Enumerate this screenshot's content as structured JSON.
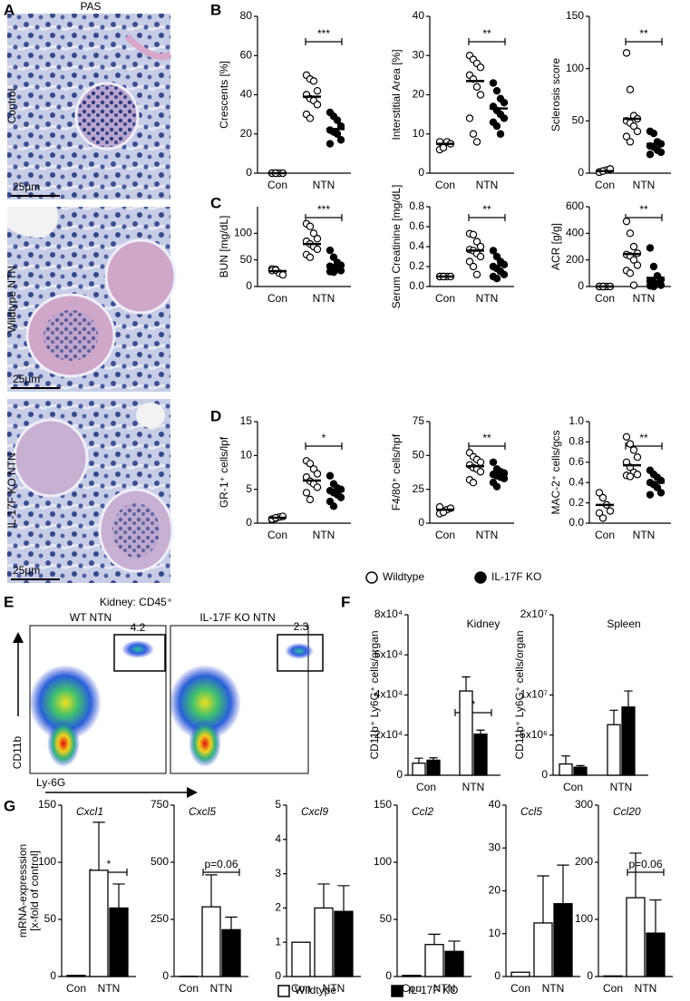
{
  "panel_labels": [
    "A",
    "B",
    "C",
    "D",
    "E",
    "F",
    "G"
  ],
  "panel_a": {
    "stain": "PAS",
    "rows": [
      {
        "label": "Control",
        "scale_bar": "25µm"
      },
      {
        "label": "Wildtype NTN",
        "scale_bar": "25µm"
      },
      {
        "label": "IL-17F KO NTN",
        "scale_bar": "25µm"
      }
    ]
  },
  "panel_e": {
    "title": "Kidney: CD45⁺",
    "x_axis": "Ly-6G",
    "y_axis": "CD11b",
    "plots": [
      {
        "label": "WT NTN",
        "gate_percent": 4.2
      },
      {
        "label": "IL-17F KO NTN",
        "gate_percent": 2.3
      }
    ]
  },
  "legends": {
    "dots": [
      "Wildtype",
      "IL-17F KO"
    ],
    "bars": [
      "Wildtype",
      "IL-17F KO"
    ]
  },
  "chart_data": [
    {
      "type": "dot",
      "ylabel": "Crescents [%]",
      "categories": [
        "Con",
        "NTN"
      ],
      "ylim": [
        0,
        80
      ],
      "yticks": [
        0,
        20,
        40,
        60,
        80
      ],
      "significance": "***",
      "series": [
        {
          "fill": "#ffffff",
          "values": [
            [
              0,
              0,
              0,
              0,
              0,
              0
            ],
            [
              50,
              48,
              47,
              42,
              40,
              38,
              37,
              35,
              30,
              28
            ]
          ],
          "means": [
            0,
            39
          ]
        },
        {
          "fill": "#000000",
          "values": [
            null,
            [
              31,
              29,
              27,
              24,
              22,
              21,
              20,
              17,
              15
            ]
          ],
          "means": [
            null,
            22.5
          ]
        }
      ]
    },
    {
      "type": "dot",
      "ylabel": "Interstitial Area [%]",
      "categories": [
        "Con",
        "NTN"
      ],
      "ylim": [
        0,
        40
      ],
      "yticks": [
        0,
        10,
        20,
        30,
        40
      ],
      "significance": "**",
      "series": [
        {
          "fill": "#ffffff",
          "values": [
            [
              6,
              7,
              8,
              7.5,
              8,
              6.5
            ],
            [
              30,
              29,
              28,
              27,
              25,
              24,
              22,
              20,
              14,
              10,
              8
            ]
          ],
          "means": [
            7.5,
            23.5
          ]
        },
        {
          "fill": "#000000",
          "values": [
            null,
            [
              23,
              21,
              19,
              18,
              17,
              16,
              15,
              14,
              13,
              12,
              10
            ]
          ],
          "means": [
            null,
            16.5
          ]
        }
      ]
    },
    {
      "type": "dot",
      "ylabel": "Sclerosis score",
      "categories": [
        "Con",
        "NTN"
      ],
      "ylim": [
        0,
        150
      ],
      "yticks": [
        0,
        50,
        100,
        150
      ],
      "significance": "**",
      "series": [
        {
          "fill": "#ffffff",
          "values": [
            [
              1,
              2,
              3,
              4,
              1,
              2
            ],
            [
              115,
              80,
              55,
              52,
              50,
              48,
              45,
              40,
              35,
              30
            ]
          ],
          "means": [
            2,
            52
          ]
        },
        {
          "fill": "#000000",
          "values": [
            null,
            [
              40,
              38,
              30,
              28,
              26,
              25,
              22,
              20,
              18
            ]
          ],
          "means": [
            null,
            28
          ]
        }
      ]
    },
    {
      "type": "dot",
      "ylabel": "BUN [mg/dL]",
      "categories": [
        "Con",
        "NTN"
      ],
      "ylim": [
        0,
        150
      ],
      "yticks": [
        0,
        50,
        100
      ],
      "significance": "***",
      "series": [
        {
          "fill": "#ffffff",
          "values": [
            [
              33,
              32,
              25,
              22,
              30,
              31
            ],
            [
              118,
              113,
              100,
              90,
              85,
              80,
              75,
              70,
              60,
              55
            ]
          ],
          "means": [
            29,
            80
          ]
        },
        {
          "fill": "#000000",
          "values": [
            null,
            [
              68,
              55,
              45,
              40,
              38,
              35,
              32,
              30,
              28,
              27
            ]
          ],
          "means": [
            null,
            40
          ]
        }
      ]
    },
    {
      "type": "dot",
      "ylabel": "Serum Creatinine [mg/dL]",
      "categories": [
        "Con",
        "NTN"
      ],
      "ylim": [
        0,
        0.8
      ],
      "yticks": [
        {
          "value": 0,
          "label": "0.0"
        },
        0.2,
        0.4,
        0.6,
        0.8
      ],
      "significance": "**",
      "series": [
        {
          "fill": "#ffffff",
          "values": [
            [
              0.1,
              0.1,
              0.1,
              0.1,
              0.1,
              0.1
            ],
            [
              0.53,
              0.52,
              0.45,
              0.4,
              0.37,
              0.36,
              0.33,
              0.3,
              0.25,
              0.2,
              0.12
            ]
          ],
          "means": [
            0.1,
            0.36
          ]
        },
        {
          "fill": "#000000",
          "values": [
            null,
            [
              0.36,
              0.3,
              0.25,
              0.22,
              0.2,
              0.18,
              0.15,
              0.12,
              0.1,
              0.08
            ]
          ],
          "means": [
            null,
            0.21
          ]
        }
      ]
    },
    {
      "type": "dot",
      "ylabel": "ACR [g/g]",
      "categories": [
        "Con",
        "NTN"
      ],
      "ylim": [
        0,
        600
      ],
      "yticks": [
        0,
        200,
        400,
        600
      ],
      "significance": "**",
      "series": [
        {
          "fill": "#ffffff",
          "values": [
            [
              0,
              0,
              0,
              0,
              0,
              0
            ],
            [
              490,
              400,
              300,
              250,
              240,
              230,
              200,
              160,
              120,
              100,
              10
            ]
          ],
          "means": [
            0,
            245
          ]
        },
        {
          "fill": "#000000",
          "values": [
            null,
            [
              290,
              150,
              80,
              50,
              40,
              30,
              20,
              10,
              5,
              0
            ]
          ],
          "means": [
            null,
            65
          ]
        }
      ]
    },
    {
      "type": "dot",
      "ylabel": "GR-1⁺ cells/lpf",
      "categories": [
        "Con",
        "NTN"
      ],
      "ylim": [
        0,
        15
      ],
      "yticks": [
        0,
        5,
        10,
        15
      ],
      "significance": "*",
      "series": [
        {
          "fill": "#ffffff",
          "values": [
            [
              0.5,
              0.7,
              0.9,
              1,
              0.6,
              0.8
            ],
            [
              9.2,
              8.8,
              8,
              7.3,
              6.8,
              6.2,
              5.8,
              5.3,
              4.5,
              3.5
            ]
          ],
          "means": [
            0.8,
            6.3
          ]
        },
        {
          "fill": "#000000",
          "values": [
            null,
            [
              7,
              5.8,
              5.2,
              5,
              4.8,
              4.5,
              4.2,
              3.8,
              3.2,
              2.5
            ]
          ],
          "means": [
            null,
            4.8
          ]
        }
      ]
    },
    {
      "type": "dot",
      "ylabel": "F4/80⁺ cells/hpf",
      "categories": [
        "Con",
        "NTN"
      ],
      "ylim": [
        0,
        75
      ],
      "yticks": [
        0,
        25,
        50,
        75
      ],
      "significance": "**",
      "series": [
        {
          "fill": "#ffffff",
          "values": [
            [
              7,
              9,
              10,
              11,
              12,
              8
            ],
            [
              52,
              49,
              47,
              45,
              43,
              41,
              40,
              38,
              32,
              30
            ]
          ],
          "means": [
            10,
            42
          ]
        },
        {
          "fill": "#000000",
          "values": [
            null,
            [
              45,
              40,
              38,
              37,
              36,
              35,
              34,
              33,
              30,
              27
            ]
          ],
          "means": [
            null,
            36
          ]
        }
      ]
    },
    {
      "type": "dot",
      "ylabel": "MAC-2⁺ cells/gcs",
      "categories": [
        "Con",
        "NTN"
      ],
      "ylim": [
        0,
        1
      ],
      "yticks": [
        {
          "value": 0,
          "label": "0.0"
        },
        0.2,
        0.4,
        0.6,
        0.8,
        {
          "value": 1,
          "label": "1.0"
        }
      ],
      "significance": "**",
      "series": [
        {
          "fill": "#ffffff",
          "values": [
            [
              0.3,
              0.25,
              0.18,
              0.12,
              0.1,
              0.05
            ],
            [
              0.85,
              0.78,
              0.72,
              0.65,
              0.6,
              0.55,
              0.5,
              0.48,
              0.47,
              0.46
            ]
          ],
          "means": [
            0.18,
            0.57
          ]
        },
        {
          "fill": "#000000",
          "values": [
            null,
            [
              0.52,
              0.48,
              0.45,
              0.42,
              0.4,
              0.38,
              0.35,
              0.3,
              0.28
            ]
          ],
          "means": [
            null,
            0.4
          ]
        }
      ]
    },
    {
      "type": "bar",
      "title": "Kidney",
      "ylabel": "CD11b⁺ Ly6G⁺ cells/organ",
      "categories": [
        "Con",
        "NTN"
      ],
      "ylim": [
        0,
        80000
      ],
      "yticks": [
        0,
        {
          "value": 20000,
          "label": "2x10⁴"
        },
        {
          "value": 40000,
          "label": "4x10⁴"
        },
        {
          "value": 60000,
          "label": "6x10⁴"
        },
        {
          "value": 80000,
          "label": "8x10⁴"
        }
      ],
      "significance": "*",
      "series": [
        {
          "fill": "#ffffff",
          "values": [
            6000,
            42000
          ],
          "errors": [
            2500,
            7000
          ]
        },
        {
          "fill": "#000000",
          "values": [
            7500,
            20500
          ],
          "errors": [
            1200,
            2000
          ]
        }
      ]
    },
    {
      "type": "bar",
      "title": "Spleen",
      "ylabel": "CD11b⁺ Ly6G⁺ cells/organ",
      "categories": [
        "Con",
        "NTN"
      ],
      "ylim": [
        0,
        20000000
      ],
      "yticks": [
        0,
        {
          "value": 5000000,
          "label": "5x10⁶"
        },
        {
          "value": 10000000,
          "label": "1x10⁷"
        },
        {
          "value": 20000000,
          "label": "2x10⁷"
        }
      ],
      "series": [
        {
          "fill": "#ffffff",
          "values": [
            1400000,
            6300000
          ],
          "errors": [
            1000000,
            1800000
          ]
        },
        {
          "fill": "#000000",
          "values": [
            1000000,
            8500000
          ],
          "errors": [
            200000,
            2000000
          ]
        }
      ]
    },
    {
      "type": "bar",
      "title": "Cxcl1",
      "ylabel": [
        "mRNA-expresssion",
        "[x-fold of control]"
      ],
      "categories": [
        "Con",
        "NTN"
      ],
      "ylim": [
        0,
        150
      ],
      "yticks": [
        0,
        50,
        100,
        150
      ],
      "significance": "*",
      "series": [
        {
          "fill": "#ffffff",
          "values": [
            1,
            93
          ],
          "errors": [
            null,
            42
          ]
        },
        {
          "fill": "#000000",
          "values": [
            null,
            60
          ],
          "errors": [
            null,
            21
          ]
        }
      ]
    },
    {
      "type": "bar",
      "title": "Cxcl5",
      "categories": [
        "Con",
        "NTN"
      ],
      "ylim": [
        0,
        750
      ],
      "yticks": [
        0,
        250,
        500,
        750
      ],
      "significance": "p=0.06",
      "series": [
        {
          "fill": "#ffffff",
          "values": [
            1,
            305
          ],
          "errors": [
            null,
            140
          ]
        },
        {
          "fill": "#000000",
          "values": [
            null,
            205
          ],
          "errors": [
            null,
            55
          ]
        }
      ]
    },
    {
      "type": "bar",
      "title": "Cxcl9",
      "categories": [
        "Con",
        "NTN"
      ],
      "ylim": [
        0,
        5
      ],
      "yticks": [
        0,
        1,
        2,
        3,
        4,
        5
      ],
      "series": [
        {
          "fill": "#ffffff",
          "values": [
            1,
            2
          ],
          "errors": [
            null,
            0.7
          ]
        },
        {
          "fill": "#000000",
          "values": [
            null,
            1.9
          ],
          "errors": [
            null,
            0.75
          ]
        }
      ]
    },
    {
      "type": "bar",
      "title": "Ccl2",
      "categories": [
        "Con",
        "NTN"
      ],
      "ylim": [
        0,
        150
      ],
      "yticks": [
        0,
        50,
        100,
        150
      ],
      "series": [
        {
          "fill": "#ffffff",
          "values": [
            1,
            28
          ],
          "errors": [
            null,
            9
          ]
        },
        {
          "fill": "#000000",
          "values": [
            null,
            22
          ],
          "errors": [
            null,
            9
          ]
        }
      ]
    },
    {
      "type": "bar",
      "title": "Ccl5",
      "categories": [
        "Con",
        "NTN"
      ],
      "ylim": [
        0,
        40
      ],
      "yticks": [
        0,
        10,
        20,
        30,
        40
      ],
      "series": [
        {
          "fill": "#ffffff",
          "values": [
            1,
            12.5
          ],
          "errors": [
            null,
            11
          ]
        },
        {
          "fill": "#000000",
          "values": [
            null,
            17
          ],
          "errors": [
            null,
            9
          ]
        }
      ]
    },
    {
      "type": "bar",
      "title": "Ccl20",
      "categories": [
        "Con",
        "NTN"
      ],
      "ylim": [
        0,
        300
      ],
      "yticks": [
        0,
        100,
        200,
        300
      ],
      "significance": "p=0.06",
      "series": [
        {
          "fill": "#ffffff",
          "values": [
            1,
            138
          ],
          "errors": [
            null,
            78
          ]
        },
        {
          "fill": "#000000",
          "values": [
            null,
            76
          ],
          "errors": [
            null,
            58
          ]
        }
      ]
    }
  ]
}
